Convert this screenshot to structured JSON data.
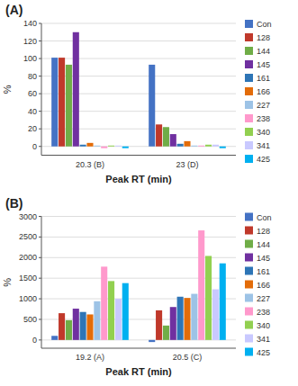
{
  "chart_data": [
    {
      "type": "bar",
      "title": "(A)",
      "xlabel": "Peak RT (min)",
      "ylabel": "%",
      "categories": [
        "20.3 (B)",
        "23 (D)"
      ],
      "ylim": [
        -10,
        140
      ],
      "yticks": [
        0,
        20,
        40,
        60,
        80,
        100,
        120,
        140
      ],
      "grid": true,
      "legend": "right",
      "series": [
        {
          "name": "Con",
          "color": "#4472C4",
          "values": [
            101,
            93
          ]
        },
        {
          "name": "128",
          "color": "#C0392B",
          "values": [
            101,
            25
          ]
        },
        {
          "name": "144",
          "color": "#70AD47",
          "values": [
            93,
            22
          ]
        },
        {
          "name": "145",
          "color": "#7030A0",
          "values": [
            130,
            14
          ]
        },
        {
          "name": "161",
          "color": "#2E75B6",
          "values": [
            2,
            3
          ]
        },
        {
          "name": "166",
          "color": "#E36C09",
          "values": [
            4,
            6
          ]
        },
        {
          "name": "227",
          "color": "#9DC3E6",
          "values": [
            1,
            1
          ]
        },
        {
          "name": "238",
          "color": "#FF99CC",
          "values": [
            -2,
            1
          ]
        },
        {
          "name": "340",
          "color": "#92D050",
          "values": [
            1,
            2
          ]
        },
        {
          "name": "341",
          "color": "#C9C9FF",
          "values": [
            1,
            2
          ]
        },
        {
          "name": "425",
          "color": "#00B0F0",
          "values": [
            -2,
            -2
          ]
        }
      ]
    },
    {
      "type": "bar",
      "title": "(B)",
      "xlabel": "Peak RT (min)",
      "ylabel": "%",
      "categories": [
        "19.2 (A)",
        "20.5 (C)"
      ],
      "ylim": [
        -200,
        3000
      ],
      "yticks": [
        0,
        500,
        1000,
        1500,
        2000,
        2500,
        3000
      ],
      "grid": true,
      "legend": "right",
      "series": [
        {
          "name": "Con",
          "color": "#4472C4",
          "values": [
            100,
            -50
          ]
        },
        {
          "name": "128",
          "color": "#C0392B",
          "values": [
            650,
            720
          ]
        },
        {
          "name": "144",
          "color": "#70AD47",
          "values": [
            480,
            350
          ]
        },
        {
          "name": "145",
          "color": "#7030A0",
          "values": [
            760,
            800
          ]
        },
        {
          "name": "161",
          "color": "#2E75B6",
          "values": [
            680,
            1050
          ]
        },
        {
          "name": "166",
          "color": "#E36C09",
          "values": [
            620,
            1020
          ]
        },
        {
          "name": "227",
          "color": "#9DC3E6",
          "values": [
            940,
            1120
          ]
        },
        {
          "name": "238",
          "color": "#FF99CC",
          "values": [
            1780,
            2660
          ]
        },
        {
          "name": "340",
          "color": "#92D050",
          "values": [
            1430,
            2040
          ]
        },
        {
          "name": "341",
          "color": "#C9C9FF",
          "values": [
            1000,
            1230
          ]
        },
        {
          "name": "425",
          "color": "#00B0F0",
          "values": [
            1380,
            1860
          ]
        }
      ]
    }
  ]
}
